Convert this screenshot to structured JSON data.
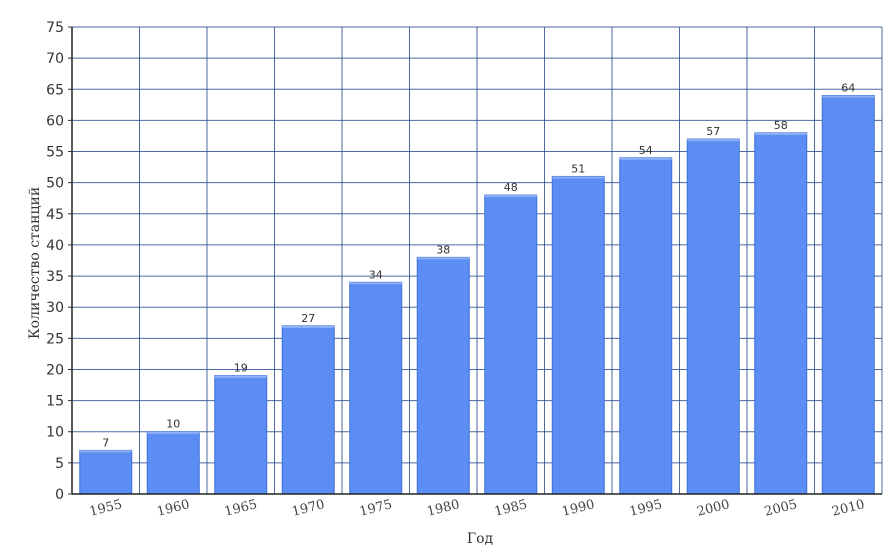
{
  "chart_data": {
    "type": "bar",
    "title": "",
    "xlabel": "Год",
    "ylabel": "Количество станций",
    "categories": [
      "1955",
      "1960",
      "1965",
      "1970",
      "1975",
      "1980",
      "1985",
      "1990",
      "1995",
      "2000",
      "2005",
      "2010"
    ],
    "values": [
      7,
      10,
      19,
      27,
      34,
      38,
      48,
      51,
      54,
      57,
      58,
      64
    ],
    "ylim": [
      0,
      75
    ],
    "yticks": [
      0,
      5,
      10,
      15,
      20,
      25,
      30,
      35,
      40,
      45,
      50,
      55,
      60,
      65,
      70,
      75
    ],
    "grid": true,
    "data_labels": true,
    "bar_color": "#5b8df2",
    "grid_color": "#2f4f8f"
  }
}
